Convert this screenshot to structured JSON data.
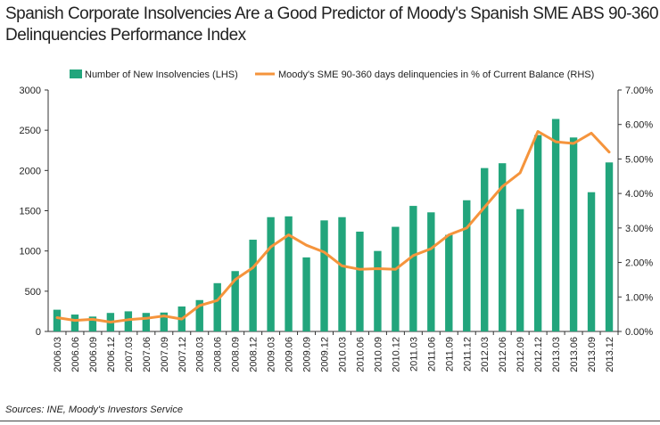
{
  "title_line1": "Spanish Corporate Insolvencies Are a Good Predictor of Moody's Spanish SME ABS 90-360",
  "title_line2": "Delinquencies Performance Index",
  "source": "Sources: INE, Moody's Investors Service",
  "colors": {
    "bars": "#22a57c",
    "line": "#f5943c",
    "axis": "#333333"
  },
  "chart_data": {
    "type": "bar+line",
    "categories": [
      "2006.03",
      "2006.06",
      "2006.09",
      "2006.12",
      "2007.03",
      "2007.06",
      "2007.09",
      "2007.12",
      "2008.03",
      "2008.06",
      "2008.09",
      "2008.12",
      "2009.03",
      "2009.06",
      "2009.09",
      "2009.12",
      "2010.03",
      "2010.06",
      "2010.09",
      "2010.12",
      "2011.03",
      "2011.06",
      "2011.09",
      "2011.12",
      "2012.03",
      "2012.06",
      "2012.09",
      "2012.12",
      "2013.03",
      "2013.06",
      "2013.09",
      "2013.12"
    ],
    "series": [
      {
        "name": "Number of New Insolvencies (LHS)",
        "type": "bar",
        "axis": "left",
        "values": [
          270,
          210,
          185,
          230,
          250,
          230,
          235,
          310,
          390,
          600,
          750,
          1140,
          1420,
          1430,
          920,
          1380,
          1420,
          1240,
          1000,
          1300,
          1560,
          1480,
          1200,
          1630,
          2030,
          2090,
          1520,
          2440,
          2640,
          2410,
          1730,
          2100
        ]
      },
      {
        "name": "Moody's SME 90-360 days delinquencies in % of Current Balance (RHS)",
        "type": "line",
        "axis": "right",
        "values": [
          0.4,
          0.32,
          0.35,
          0.27,
          0.34,
          0.38,
          0.45,
          0.36,
          0.75,
          0.9,
          1.5,
          1.85,
          2.45,
          2.8,
          2.5,
          2.3,
          1.9,
          1.8,
          1.82,
          1.8,
          2.2,
          2.4,
          2.8,
          3.0,
          3.6,
          4.2,
          4.6,
          5.8,
          5.5,
          5.45,
          5.75,
          5.2
        ]
      }
    ],
    "y_left": {
      "min": 0,
      "max": 3000,
      "ticks": [
        "0",
        "500",
        "1000",
        "1500",
        "2000",
        "2500",
        "3000"
      ]
    },
    "y_right": {
      "min": 0,
      "max": 7,
      "ticks": [
        "0.00%",
        "1.00%",
        "2.00%",
        "3.00%",
        "4.00%",
        "5.00%",
        "6.00%",
        "7.00%"
      ]
    },
    "legend": "top",
    "grid": false
  }
}
